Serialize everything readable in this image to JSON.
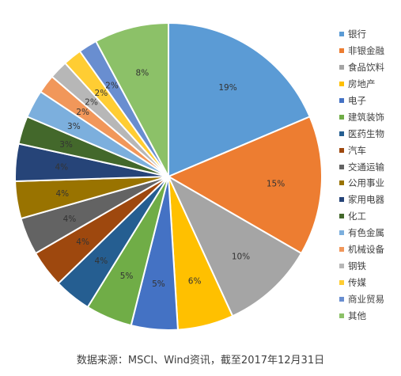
{
  "chart_data": {
    "type": "pie",
    "categories": [
      "银行",
      "非银金融",
      "食品饮料",
      "房地产",
      "电子",
      "建筑装饰",
      "医药生物",
      "汽车",
      "交通运输",
      "公用事业",
      "家用电器",
      "化工",
      "有色金属",
      "机械设备",
      "钢铁",
      "传媒",
      "商业贸易",
      "其他"
    ],
    "values": [
      19,
      15,
      10,
      6,
      5,
      5,
      4,
      4,
      4,
      4,
      4,
      3,
      3,
      2,
      2,
      2,
      2,
      8
    ],
    "labels": [
      "19%",
      "15%",
      "10%",
      "6%",
      "5%",
      "5%",
      "4%",
      "4%",
      "4%",
      "4%",
      "4%",
      "3%",
      "3%",
      "2%",
      "2%",
      "2%",
      "2%",
      "8%"
    ],
    "colors": [
      "#5B9BD5",
      "#ED7D31",
      "#A5A5A5",
      "#FFC000",
      "#4472C4",
      "#70AD47",
      "#255E91",
      "#9E480E",
      "#636363",
      "#997300",
      "#264478",
      "#43682B",
      "#7CAFDD",
      "#F1975A",
      "#B7B7B7",
      "#FFCD33",
      "#698ED0",
      "#8CC168"
    ],
    "legend_position": "right",
    "start_angle": "top",
    "direction": "clockwise"
  },
  "source_note": "数据来源：MSCI、Wind资讯，截至2017年12月31日"
}
